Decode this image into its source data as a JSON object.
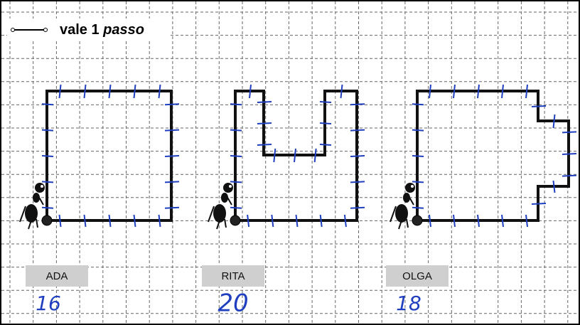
{
  "legend": {
    "text": "vale 1",
    "emphasis": "passo"
  },
  "figures": [
    {
      "name": "ADA",
      "answer": "16"
    },
    {
      "name": "RITA",
      "answer": "20"
    },
    {
      "name": "OLGA",
      "answer": "18"
    }
  ]
}
